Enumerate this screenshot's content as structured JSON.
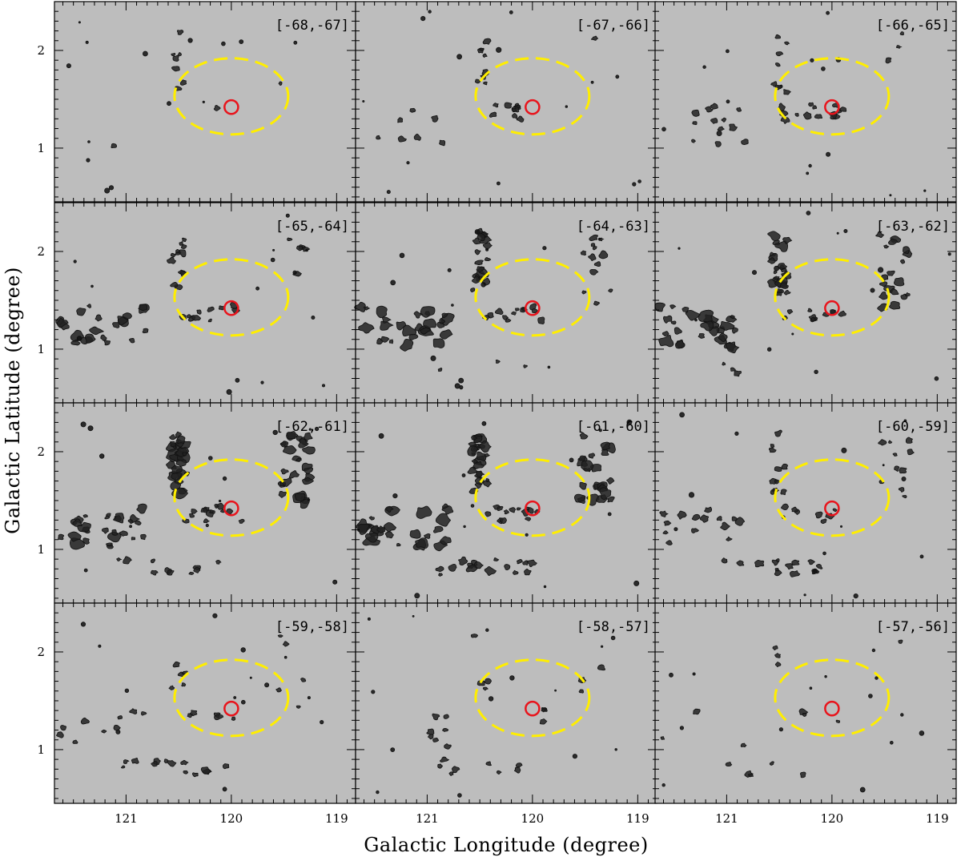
{
  "chart_data": {
    "type": "channel-map-grid",
    "xlabel": "Galactic Longitude (degree)",
    "ylabel": "Galactic Latitude (degree)",
    "xlim": [
      121.68,
      118.82
    ],
    "ylim": [
      0.45,
      2.5
    ],
    "x_tick_labels": [
      {
        "value": 121,
        "label": "121"
      },
      {
        "value": 120,
        "label": "120"
      },
      {
        "value": 119,
        "label": "119"
      }
    ],
    "y_tick_labels": [
      {
        "value": 1,
        "label": "1"
      },
      {
        "value": 2,
        "label": "2"
      }
    ],
    "grid": false,
    "colors": {
      "map_background": "#bdbdbd",
      "contours": "#111111",
      "ellipse": "#ffee00",
      "marker": "#e8141c"
    },
    "marker": {
      "l": 120.0,
      "b": 1.42,
      "radius_deg": 0.065
    },
    "ellipse": {
      "l": 120.0,
      "b": 1.53,
      "semi_l_deg": 0.54,
      "semi_b_deg": 0.39
    },
    "panels": [
      {
        "label": "[-68,-67]"
      },
      {
        "label": "[-67,-66]"
      },
      {
        "label": "[-66,-65]"
      },
      {
        "label": "[-65,-64]"
      },
      {
        "label": "[-64,-63]"
      },
      {
        "label": "[-63,-62]"
      },
      {
        "label": "[-62,-61]"
      },
      {
        "label": "[-61,-60]"
      },
      {
        "label": "[-60,-59]"
      },
      {
        "label": "[-59,-58]"
      },
      {
        "label": "[-58,-57]"
      },
      {
        "label": "[-57,-56]"
      }
    ]
  }
}
